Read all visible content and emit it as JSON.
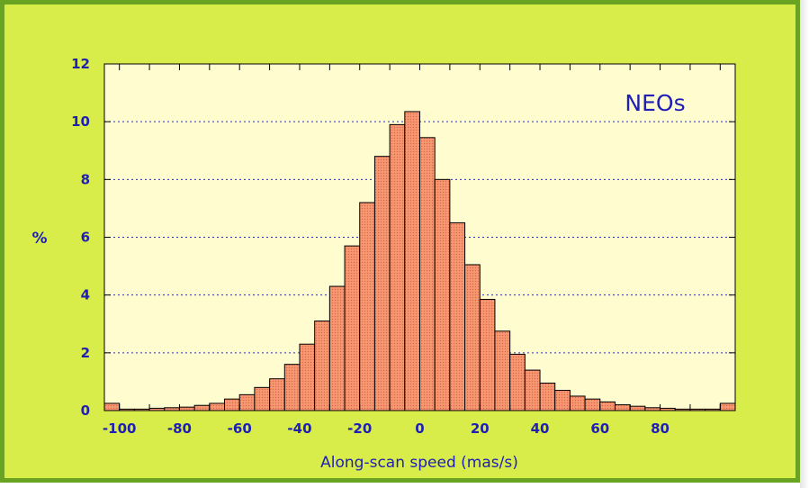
{
  "chart_data": {
    "type": "bar",
    "annotation": "NEOs",
    "xlabel": "Along-scan speed (mas/s)",
    "ylabel": "%",
    "xlim": [
      -105,
      105
    ],
    "ylim": [
      0,
      12
    ],
    "xticks": [
      -100,
      -80,
      -60,
      -40,
      -20,
      0,
      20,
      40,
      60,
      80
    ],
    "yticks": [
      0,
      2,
      4,
      6,
      8,
      10,
      12
    ],
    "grid": "horizontal dotted",
    "bin_width": 5,
    "bins": [
      {
        "center": -102.5,
        "value": 0.25
      },
      {
        "center": -97.5,
        "value": 0.05
      },
      {
        "center": -92.5,
        "value": 0.05
      },
      {
        "center": -87.5,
        "value": 0.08
      },
      {
        "center": -82.5,
        "value": 0.1
      },
      {
        "center": -77.5,
        "value": 0.12
      },
      {
        "center": -72.5,
        "value": 0.18
      },
      {
        "center": -67.5,
        "value": 0.25
      },
      {
        "center": -62.5,
        "value": 0.4
      },
      {
        "center": -57.5,
        "value": 0.55
      },
      {
        "center": -52.5,
        "value": 0.8
      },
      {
        "center": -47.5,
        "value": 1.1
      },
      {
        "center": -42.5,
        "value": 1.6
      },
      {
        "center": -37.5,
        "value": 2.3
      },
      {
        "center": -32.5,
        "value": 3.1
      },
      {
        "center": -27.5,
        "value": 4.3
      },
      {
        "center": -22.5,
        "value": 5.7
      },
      {
        "center": -17.5,
        "value": 7.2
      },
      {
        "center": -12.5,
        "value": 8.8
      },
      {
        "center": -7.5,
        "value": 9.9
      },
      {
        "center": -2.5,
        "value": 10.35
      },
      {
        "center": 2.5,
        "value": 9.45
      },
      {
        "center": 7.5,
        "value": 8.0
      },
      {
        "center": 12.5,
        "value": 6.5
      },
      {
        "center": 17.5,
        "value": 5.05
      },
      {
        "center": 22.5,
        "value": 3.85
      },
      {
        "center": 27.5,
        "value": 2.75
      },
      {
        "center": 32.5,
        "value": 1.95
      },
      {
        "center": 37.5,
        "value": 1.4
      },
      {
        "center": 42.5,
        "value": 0.95
      },
      {
        "center": 47.5,
        "value": 0.7
      },
      {
        "center": 52.5,
        "value": 0.5
      },
      {
        "center": 57.5,
        "value": 0.4
      },
      {
        "center": 62.5,
        "value": 0.3
      },
      {
        "center": 67.5,
        "value": 0.2
      },
      {
        "center": 72.5,
        "value": 0.15
      },
      {
        "center": 77.5,
        "value": 0.1
      },
      {
        "center": 82.5,
        "value": 0.08
      },
      {
        "center": 87.5,
        "value": 0.05
      },
      {
        "center": 92.5,
        "value": 0.05
      },
      {
        "center": 97.5,
        "value": 0.05
      },
      {
        "center": 102.5,
        "value": 0.25
      }
    ],
    "colors": {
      "frame_bg": "#d8ec4a",
      "frame_border": "#6aa321",
      "plot_bg": "#fffdd0",
      "bar_fill": "#f4906a",
      "bar_stroke": "#000000",
      "text": "#1f1fb5",
      "grid": "#2a2ad0"
    }
  }
}
